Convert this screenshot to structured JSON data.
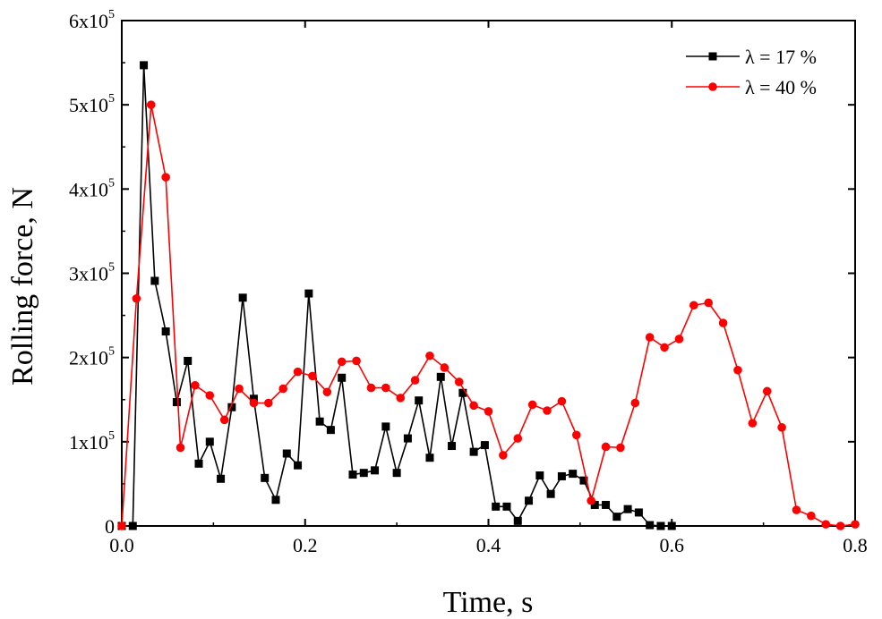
{
  "chart_data": {
    "type": "line",
    "xlabel": "Time, s",
    "ylabel": "Rolling force, N",
    "xlim": [
      0,
      0.8
    ],
    "ylim": [
      0,
      600000
    ],
    "x_ticks": [
      0,
      0.2,
      0.4,
      0.6,
      0.8
    ],
    "x_tick_labels": [
      "0.0",
      "0.2",
      "0.4",
      "0.6",
      "0.8"
    ],
    "y_ticks": [
      0,
      100000,
      200000,
      300000,
      400000,
      500000,
      600000
    ],
    "y_tick_labels": [
      {
        "base": "0",
        "exp": ""
      },
      {
        "base": "1x10",
        "exp": "5"
      },
      {
        "base": "2x10",
        "exp": "5"
      },
      {
        "base": "3x10",
        "exp": "5"
      },
      {
        "base": "4x10",
        "exp": "5"
      },
      {
        "base": "5x10",
        "exp": "5"
      },
      {
        "base": "6x10",
        "exp": "5"
      }
    ],
    "grid": false,
    "legend_position": "top-right",
    "series": [
      {
        "name": "λ = 17 %",
        "color": "#000000",
        "marker": "square",
        "points": [
          [
            0.0,
            0
          ],
          [
            0.012,
            0
          ],
          [
            0.024,
            547000
          ],
          [
            0.036,
            291000
          ],
          [
            0.048,
            231000
          ],
          [
            0.06,
            147000
          ],
          [
            0.072,
            196000
          ],
          [
            0.084,
            74000
          ],
          [
            0.096,
            100000
          ],
          [
            0.108,
            56000
          ],
          [
            0.12,
            141000
          ],
          [
            0.132,
            271000
          ],
          [
            0.144,
            151000
          ],
          [
            0.156,
            57000
          ],
          [
            0.168,
            31000
          ],
          [
            0.18,
            86000
          ],
          [
            0.192,
            72000
          ],
          [
            0.204,
            276000
          ],
          [
            0.216,
            124000
          ],
          [
            0.228,
            114000
          ],
          [
            0.24,
            176000
          ],
          [
            0.252,
            61000
          ],
          [
            0.264,
            63000
          ],
          [
            0.276,
            66000
          ],
          [
            0.288,
            118000
          ],
          [
            0.3,
            63000
          ],
          [
            0.312,
            104000
          ],
          [
            0.324,
            149000
          ],
          [
            0.336,
            81000
          ],
          [
            0.348,
            177000
          ],
          [
            0.36,
            95000
          ],
          [
            0.372,
            158000
          ],
          [
            0.384,
            88000
          ],
          [
            0.396,
            96000
          ],
          [
            0.408,
            23000
          ],
          [
            0.42,
            23000
          ],
          [
            0.432,
            6000
          ],
          [
            0.444,
            30000
          ],
          [
            0.456,
            60000
          ],
          [
            0.468,
            38000
          ],
          [
            0.48,
            59000
          ],
          [
            0.492,
            62000
          ],
          [
            0.504,
            54000
          ],
          [
            0.516,
            25000
          ],
          [
            0.528,
            25000
          ],
          [
            0.54,
            11000
          ],
          [
            0.552,
            20000
          ],
          [
            0.564,
            16000
          ],
          [
            0.576,
            1000
          ],
          [
            0.588,
            0
          ],
          [
            0.6,
            0
          ]
        ]
      },
      {
        "name": "λ = 40 %",
        "color": "#ff0000",
        "marker": "circle",
        "points": [
          [
            0.0,
            0
          ],
          [
            0.016,
            270000
          ],
          [
            0.032,
            500000
          ],
          [
            0.048,
            414000
          ],
          [
            0.064,
            93000
          ],
          [
            0.08,
            167000
          ],
          [
            0.096,
            155000
          ],
          [
            0.112,
            126000
          ],
          [
            0.128,
            163000
          ],
          [
            0.144,
            146000
          ],
          [
            0.16,
            146000
          ],
          [
            0.176,
            163000
          ],
          [
            0.192,
            183000
          ],
          [
            0.208,
            178000
          ],
          [
            0.224,
            159000
          ],
          [
            0.24,
            195000
          ],
          [
            0.256,
            196000
          ],
          [
            0.272,
            164000
          ],
          [
            0.288,
            164000
          ],
          [
            0.304,
            152000
          ],
          [
            0.32,
            173000
          ],
          [
            0.336,
            202000
          ],
          [
            0.352,
            188000
          ],
          [
            0.368,
            171000
          ],
          [
            0.384,
            143000
          ],
          [
            0.4,
            136000
          ],
          [
            0.416,
            84000
          ],
          [
            0.432,
            104000
          ],
          [
            0.448,
            144000
          ],
          [
            0.464,
            137000
          ],
          [
            0.48,
            148000
          ],
          [
            0.496,
            108000
          ],
          [
            0.512,
            30000
          ],
          [
            0.528,
            94000
          ],
          [
            0.544,
            93000
          ],
          [
            0.56,
            146000
          ],
          [
            0.576,
            224000
          ],
          [
            0.592,
            212000
          ],
          [
            0.608,
            222000
          ],
          [
            0.624,
            262000
          ],
          [
            0.64,
            265000
          ],
          [
            0.656,
            241000
          ],
          [
            0.672,
            185000
          ],
          [
            0.688,
            122000
          ],
          [
            0.704,
            160000
          ],
          [
            0.72,
            117000
          ],
          [
            0.736,
            19000
          ],
          [
            0.752,
            12000
          ],
          [
            0.768,
            2000
          ],
          [
            0.784,
            0
          ],
          [
            0.8,
            2000
          ]
        ]
      }
    ]
  }
}
